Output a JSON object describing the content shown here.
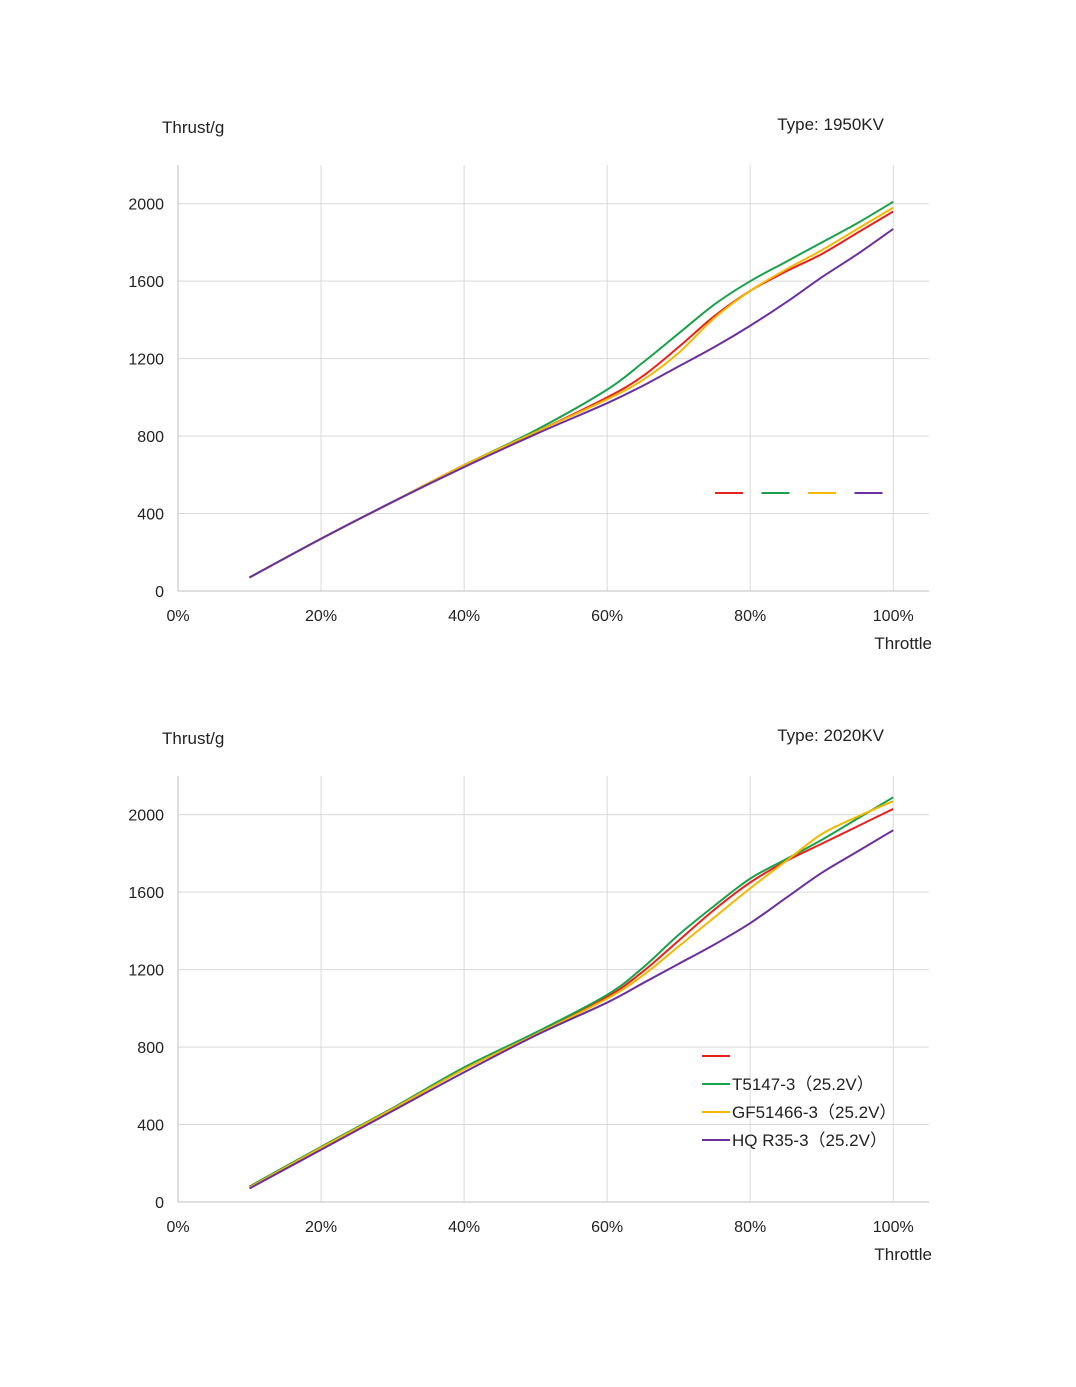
{
  "chart_data": [
    {
      "type": "line",
      "title": "Type: 1950KV",
      "ylabel": "Thrust/g",
      "xlabel": "Throttle",
      "x_unit": "%",
      "x_ticks": [
        "0%",
        "20%",
        "40%",
        "60%",
        "80%",
        "100%"
      ],
      "y_ticks": [
        "0",
        "400",
        "800",
        "1200",
        "1600",
        "2000"
      ],
      "xlim": [
        0,
        105
      ],
      "ylim": [
        0,
        2200
      ],
      "grid": true,
      "legend_placement": "right",
      "x": [
        10,
        20,
        30,
        40,
        50,
        60,
        65,
        70,
        75,
        80,
        85,
        90,
        95,
        100
      ],
      "series": [
        {
          "color": "#e8221c",
          "values": [
            70,
            270,
            460,
            650,
            820,
            1000,
            1110,
            1260,
            1420,
            1550,
            1650,
            1740,
            1850,
            1960
          ]
        },
        {
          "color": "#1aa14b",
          "values": [
            70,
            270,
            460,
            650,
            830,
            1040,
            1180,
            1330,
            1480,
            1600,
            1700,
            1800,
            1900,
            2010
          ]
        },
        {
          "color": "#f5b800",
          "values": [
            70,
            270,
            460,
            650,
            820,
            990,
            1090,
            1230,
            1410,
            1550,
            1660,
            1760,
            1870,
            1980
          ]
        },
        {
          "color": "#6b2fa0",
          "values": [
            70,
            270,
            460,
            640,
            810,
            970,
            1060,
            1160,
            1260,
            1370,
            1490,
            1620,
            1740,
            1870
          ]
        }
      ]
    },
    {
      "type": "line",
      "title": "Type: 2020KV",
      "ylabel": "Thrust/g",
      "xlabel": "Throttle",
      "x_unit": "%",
      "x_ticks": [
        "0%",
        "20%",
        "40%",
        "60%",
        "80%",
        "100%"
      ],
      "y_ticks": [
        "0",
        "400",
        "800",
        "1200",
        "1600",
        "2000"
      ],
      "xlim": [
        0,
        105
      ],
      "ylim": [
        0,
        2200
      ],
      "grid": true,
      "legend_placement": "bottom-right",
      "x": [
        10,
        20,
        30,
        40,
        50,
        60,
        65,
        70,
        75,
        80,
        85,
        90,
        95,
        100
      ],
      "series": [
        {
          "name": "",
          "color": "#e8221c",
          "values": [
            75,
            280,
            480,
            690,
            870,
            1060,
            1190,
            1350,
            1510,
            1650,
            1760,
            1850,
            1940,
            2030
          ]
        },
        {
          "name": "T5147-3（25.2V）",
          "color": "#1aa14b",
          "values": [
            80,
            285,
            485,
            695,
            875,
            1070,
            1210,
            1380,
            1530,
            1670,
            1770,
            1870,
            1980,
            2090
          ]
        },
        {
          "name": "GF51466-3（25.2V）",
          "color": "#f5b800",
          "values": [
            75,
            280,
            480,
            685,
            865,
            1050,
            1170,
            1320,
            1470,
            1620,
            1760,
            1900,
            1990,
            2070
          ]
        },
        {
          "name": "HQ R35-3（25.2V）",
          "color": "#6b2fa0",
          "values": [
            70,
            270,
            470,
            670,
            860,
            1030,
            1130,
            1230,
            1330,
            1440,
            1570,
            1700,
            1810,
            1920
          ]
        }
      ]
    }
  ]
}
